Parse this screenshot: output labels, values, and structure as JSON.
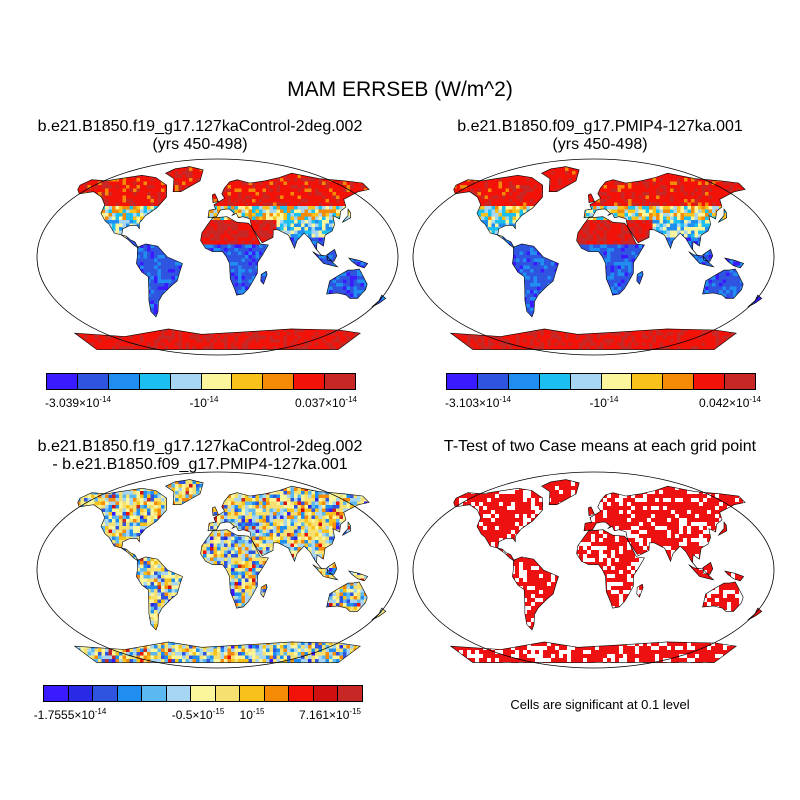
{
  "figure": {
    "title": "MAM ERRSEB (W/m^2)"
  },
  "panels": [
    {
      "id": "case1",
      "title_line1": "b.e21.B1850.f19_g17.127kaControl-2deg.002",
      "title_line2": "(yrs 450-498)",
      "field": "case",
      "colorbar": {
        "colors": [
          "#3a1aff",
          "#2f55e0",
          "#1f8ef0",
          "#1cc0f0",
          "#a6d6f2",
          "#fbf59c",
          "#f8c21b",
          "#f58a07",
          "#f31208",
          "#c72825"
        ],
        "labels": [
          {
            "mant": "-3.039",
            "exp": "-14"
          },
          {
            "mant": "-10",
            "exp": "-14"
          },
          {
            "mant": "0.037",
            "exp": "-14"
          }
        ]
      }
    },
    {
      "id": "case2",
      "title_line1": "b.e21.B1850.f09_g17.PMIP4-127ka.001",
      "title_line2": "(yrs 450-498)",
      "field": "case",
      "colorbar": {
        "colors": [
          "#3a1aff",
          "#2f55e0",
          "#1f8ef0",
          "#1cc0f0",
          "#a6d6f2",
          "#fbf59c",
          "#f8c21b",
          "#f58a07",
          "#f31208",
          "#c72825"
        ],
        "labels": [
          {
            "mant": "-3.103",
            "exp": "-14"
          },
          {
            "mant": "-10",
            "exp": "-14"
          },
          {
            "mant": "0.042",
            "exp": "-14"
          }
        ]
      }
    },
    {
      "id": "diff",
      "title_line1": "b.e21.B1850.f19_g17.127kaControl-2deg.002",
      "title_line2": "- b.e21.B1850.f09_g17.PMIP4-127ka.001",
      "field": "diff",
      "colorbar": {
        "colors": [
          "#3a1aff",
          "#2a2ae6",
          "#2f55e0",
          "#1f8ef0",
          "#5cb8f0",
          "#a6d6f2",
          "#fbf59c",
          "#f5e070",
          "#f8c21b",
          "#f58a07",
          "#f31208",
          "#d01010",
          "#c72825"
        ],
        "labels": [
          {
            "mant": "-1.7555",
            "exp": "-14"
          },
          {
            "mant": "-0.5",
            "exp": "-15"
          },
          {
            "mant": "10",
            "exp": "-15"
          },
          {
            "mant": "7.161",
            "exp": "-15"
          }
        ]
      }
    },
    {
      "id": "ttest",
      "title_line1": "T-Test of two Case means at each grid point",
      "title_line2": "",
      "field": "ttest",
      "note": "Cells are significant at 0.1 level"
    }
  ],
  "map_colors": {
    "significant": "#ee1111",
    "coastline": "#000000"
  }
}
